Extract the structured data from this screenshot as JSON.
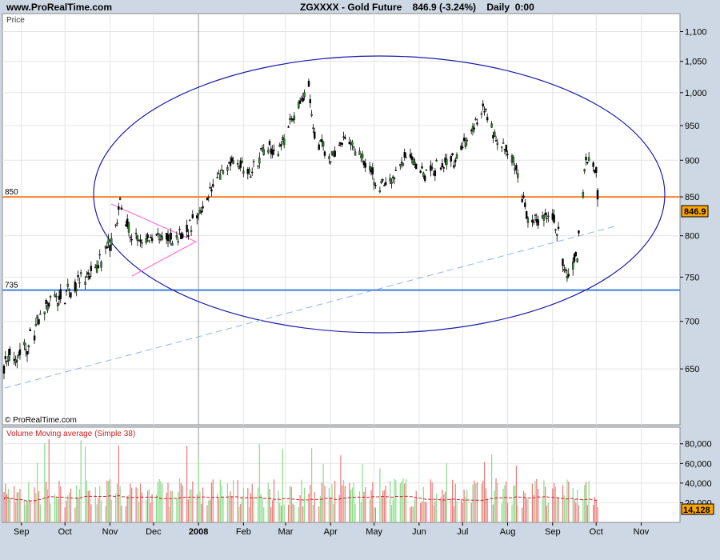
{
  "header": {
    "site": "www.ProRealTime.com",
    "title": "ZGXXXX - Gold Future    846.9 (-3.24%)    Daily  0:00"
  },
  "price_panel": {
    "label": "Price",
    "watermark": "© ProRealTime.com",
    "current_value": "846.9",
    "hline_labels": [
      "850",
      "735"
    ]
  },
  "volume_panel": {
    "label": "Volume Moving average (Simple 38)",
    "current_value": "14,128"
  },
  "colors": {
    "panel_bg": "#ffffff",
    "frame_bg": "#cdd8e4",
    "ellipse": "#1c1ca8",
    "orange_line": "#ff7f27",
    "blue_line": "#3f7fe0",
    "trend_dash": "#8fb4f0",
    "triangle": "#ff66cc",
    "up_candle": "#2a8a2a",
    "down_candle": "#000000",
    "vol_up": "#88dd88",
    "vol_down": "#ee7777",
    "vol_ma": "#cc2222",
    "label_bg": "#ffa500"
  },
  "chart_data": [
    {
      "type": "candlestick",
      "title": "ZGXXXX - Gold Future",
      "y_axis_ticks": [
        650,
        700,
        750,
        800,
        850,
        900,
        950,
        1000,
        1050,
        1100
      ],
      "y_tick_labels": [
        "650",
        "700",
        "750",
        "800",
        "850",
        "900",
        "950",
        "1,000",
        "1,050",
        "1,100"
      ],
      "ylim": [
        620,
        1120
      ],
      "x_tick_labels": [
        "Sep",
        "Oct",
        "Nov",
        "Dec",
        "2008",
        "Feb",
        "Mar",
        "Apr",
        "May",
        "Jun",
        "Jul",
        "Aug",
        "Sep",
        "Oct",
        "Nov"
      ],
      "x_tick_dates": [
        "2007-09-01",
        "2007-10-01",
        "2007-11-01",
        "2007-12-01",
        "2008-01-01",
        "2008-02-01",
        "2008-03-01",
        "2008-04-01",
        "2008-05-01",
        "2008-06-01",
        "2008-07-01",
        "2008-08-01",
        "2008-09-01",
        "2008-10-01",
        "2008-11-01"
      ],
      "xlim": [
        "2007-08-20",
        "2008-11-25"
      ],
      "price_path": [
        [
          "2007-08-20",
          655
        ],
        [
          "2007-09-05",
          675
        ],
        [
          "2007-09-20",
          720
        ],
        [
          "2007-10-05",
          735
        ],
        [
          "2007-10-20",
          755
        ],
        [
          "2007-11-01",
          790
        ],
        [
          "2007-11-08",
          842
        ],
        [
          "2007-11-15",
          800
        ],
        [
          "2007-11-22",
          790
        ],
        [
          "2007-12-01",
          800
        ],
        [
          "2007-12-15",
          795
        ],
        [
          "2007-12-28",
          815
        ],
        [
          "2008-01-10",
          860
        ],
        [
          "2008-01-25",
          905
        ],
        [
          "2008-02-05",
          880
        ],
        [
          "2008-02-15",
          920
        ],
        [
          "2008-02-25",
          915
        ],
        [
          "2008-03-05",
          955
        ],
        [
          "2008-03-17",
          1010
        ],
        [
          "2008-03-20",
          940
        ],
        [
          "2008-04-01",
          900
        ],
        [
          "2008-04-10",
          930
        ],
        [
          "2008-04-20",
          915
        ],
        [
          "2008-05-01",
          875
        ],
        [
          "2008-05-05",
          860
        ],
        [
          "2008-05-15",
          880
        ],
        [
          "2008-05-25",
          910
        ],
        [
          "2008-06-05",
          880
        ],
        [
          "2008-06-15",
          890
        ],
        [
          "2008-06-25",
          900
        ],
        [
          "2008-07-05",
          930
        ],
        [
          "2008-07-15",
          975
        ],
        [
          "2008-07-25",
          925
        ],
        [
          "2008-08-05",
          900
        ],
        [
          "2008-08-15",
          820
        ],
        [
          "2008-08-25",
          820
        ],
        [
          "2008-09-01",
          825
        ],
        [
          "2008-09-05",
          800
        ],
        [
          "2008-09-11",
          745
        ],
        [
          "2008-09-18",
          780
        ],
        [
          "2008-09-24",
          900
        ],
        [
          "2008-09-30",
          890
        ],
        [
          "2008-10-02",
          880
        ],
        [
          "2008-10-03",
          846.9
        ]
      ],
      "horizontal_lines": [
        {
          "value": 850,
          "label": "850"
        },
        {
          "value": 735,
          "label": "735"
        }
      ],
      "last": 846.9,
      "change_pct": -3.24,
      "grid": true
    },
    {
      "type": "bar",
      "title": "Volume Moving average (Simple 38)",
      "y_axis_ticks": [
        20000,
        40000,
        60000,
        80000
      ],
      "y_tick_labels": [
        "20,000",
        "40,000",
        "60,000",
        "80,000"
      ],
      "ylim": [
        0,
        92000
      ],
      "ma_period": 38,
      "last": 14128
    }
  ]
}
